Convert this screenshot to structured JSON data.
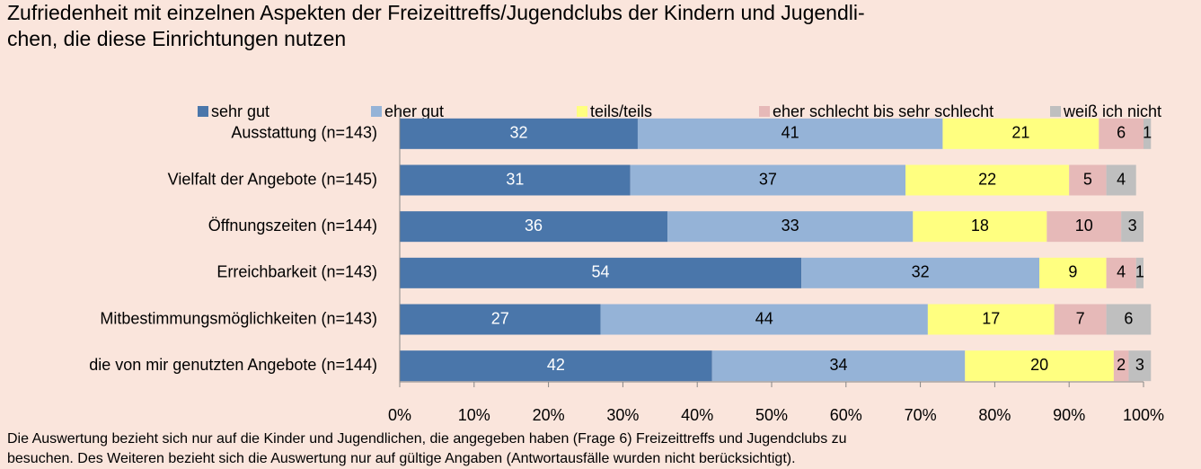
{
  "chart_data": {
    "type": "stacked_barh",
    "title_lines": [
      "Zufriedenheit mit einzelnen Aspekten der Freizeittreffs/Jugendclubs der Kindern und Jugendli-",
      "chen, die diese Einrichtungen nutzen"
    ],
    "categories": [
      "Ausstattung (n=143)",
      "Vielfalt der Angebote (n=145)",
      "Öffnungszeiten (n=144)",
      "Erreichbarkeit (n=143)",
      "Mitbestimmungsmöglichkeiten (n=143)",
      "die von mir genutzten Angebote (n=144)"
    ],
    "series": [
      {
        "name": "sehr gut",
        "color": "#4a76aa",
        "label_color": "#ffffff",
        "values": [
          32,
          31,
          36,
          54,
          27,
          42
        ]
      },
      {
        "name": "eher gut",
        "color": "#95b3d7",
        "label_color": "#000000",
        "values": [
          41,
          37,
          33,
          32,
          44,
          34
        ]
      },
      {
        "name": "teils/teils",
        "color": "#ffff80",
        "label_color": "#000000",
        "values": [
          21,
          22,
          18,
          9,
          17,
          20
        ]
      },
      {
        "name": "eher schlecht bis sehr schlecht",
        "color": "#e6b9b8",
        "label_color": "#000000",
        "values": [
          6,
          5,
          10,
          4,
          7,
          2
        ]
      },
      {
        "name": "weiß ich nicht",
        "color": "#bfbfbf",
        "label_color": "#000000",
        "values": [
          1,
          4,
          3,
          1,
          6,
          3
        ]
      }
    ],
    "xlim": [
      0,
      100
    ],
    "xticks": [
      {
        "value": 0,
        "label": "0%"
      },
      {
        "value": 10,
        "label": "10%"
      },
      {
        "value": 20,
        "label": "20%"
      },
      {
        "value": 30,
        "label": "30%"
      },
      {
        "value": 40,
        "label": "40%"
      },
      {
        "value": 50,
        "label": "50%"
      },
      {
        "value": 60,
        "label": "60%"
      },
      {
        "value": 70,
        "label": "70%"
      },
      {
        "value": 80,
        "label": "80%"
      },
      {
        "value": 90,
        "label": "90%"
      },
      {
        "value": 100,
        "label": "100%"
      }
    ],
    "grid": false,
    "legend": "top",
    "footnote_lines": [
      "Die Auswertung bezieht sich nur auf die Kinder und Jugendlichen, die angegeben haben (Frage 6) Freizeittreffs und Jugendclubs zu",
      "besuchen. Des Weiteren bezieht sich die Auswertung nur auf gültige Angaben (Antwortausfälle wurden nicht berücksichtigt)."
    ]
  }
}
